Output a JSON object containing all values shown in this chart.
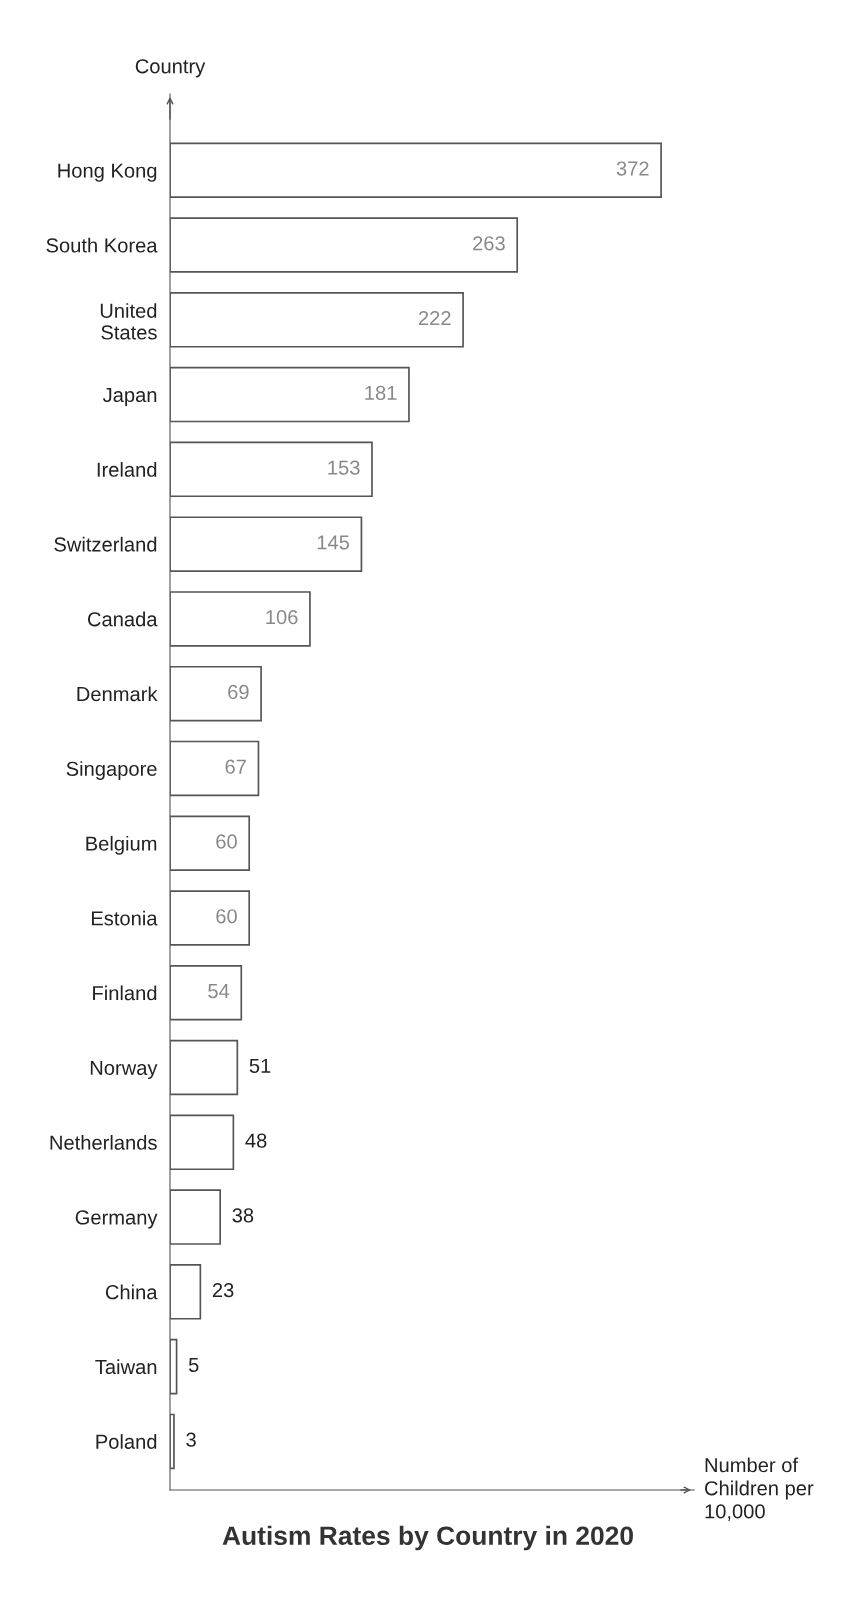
{
  "chart_data": {
    "type": "bar",
    "orientation": "horizontal",
    "title": "Autism Rates by Country in 2020",
    "xlabel": "Number of\nChildren per\n10,000",
    "ylabel": "Country",
    "categories": [
      "Hong Kong",
      "South Korea",
      "United\nStates",
      "Japan",
      "Ireland",
      "Switzerland",
      "Canada",
      "Denmark",
      "Singapore",
      "Belgium",
      "Estonia",
      "Finland",
      "Norway",
      "Netherlands",
      "Germany",
      "China",
      "Taiwan",
      "Poland"
    ],
    "values": [
      372,
      263,
      222,
      181,
      153,
      145,
      106,
      69,
      67,
      60,
      60,
      54,
      51,
      48,
      38,
      23,
      5,
      3
    ],
    "color": "#ffffff",
    "data_labels": true,
    "grid": false,
    "legend": false,
    "tick_labels": "y"
  }
}
